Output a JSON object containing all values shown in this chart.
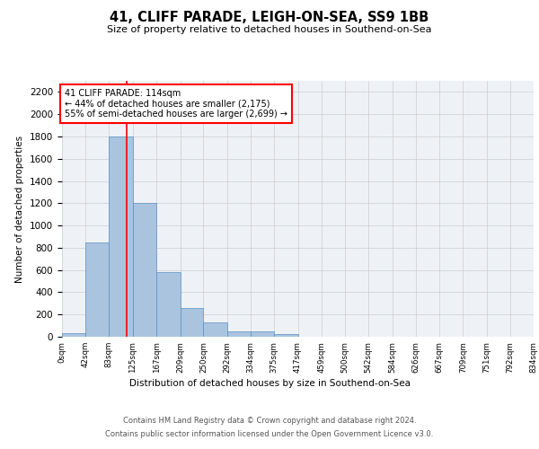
{
  "title": "41, CLIFF PARADE, LEIGH-ON-SEA, SS9 1BB",
  "subtitle": "Size of property relative to detached houses in Southend-on-Sea",
  "xlabel": "Distribution of detached houses by size in Southend-on-Sea",
  "ylabel": "Number of detached properties",
  "bar_edges": [
    0,
    42,
    83,
    125,
    167,
    209,
    250,
    292,
    334,
    375,
    417,
    459,
    500,
    542,
    584,
    626,
    667,
    709,
    751,
    792,
    834
  ],
  "bar_heights": [
    30,
    850,
    1800,
    1200,
    580,
    255,
    130,
    45,
    45,
    25,
    0,
    0,
    0,
    0,
    0,
    0,
    0,
    0,
    0,
    0
  ],
  "bar_color": "#aac4e0",
  "bar_edgecolor": "#5a8fc0",
  "grid_color": "#cccccc",
  "background_color": "#eef2f7",
  "property_size": 114,
  "property_line_color": "red",
  "annotation_text": "41 CLIFF PARADE: 114sqm\n← 44% of detached houses are smaller (2,175)\n55% of semi-detached houses are larger (2,699) →",
  "annotation_box_color": "white",
  "annotation_box_edgecolor": "red",
  "ylim": [
    0,
    2300
  ],
  "yticks": [
    0,
    200,
    400,
    600,
    800,
    1000,
    1200,
    1400,
    1600,
    1800,
    2000,
    2200
  ],
  "footer_line1": "Contains HM Land Registry data © Crown copyright and database right 2024.",
  "footer_line2": "Contains public sector information licensed under the Open Government Licence v3.0."
}
